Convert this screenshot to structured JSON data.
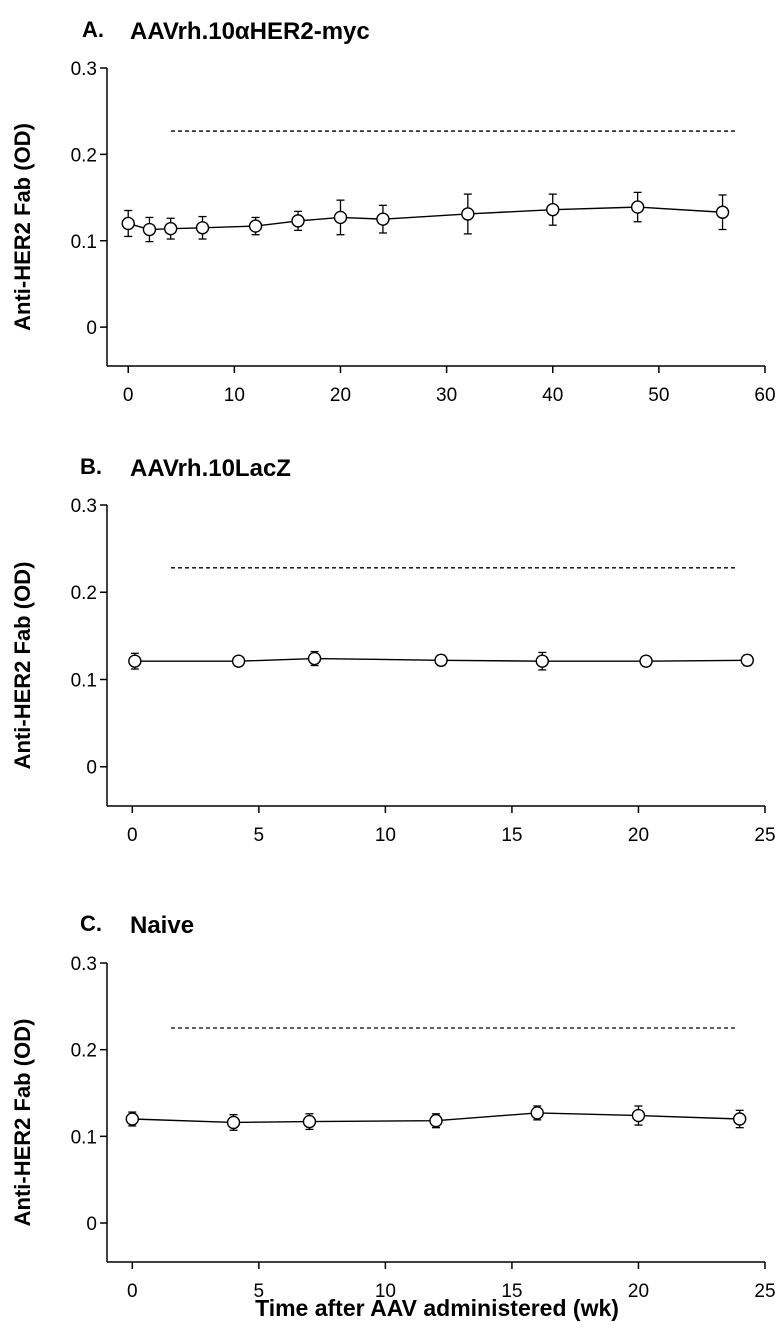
{
  "chart_data": [
    {
      "type": "line",
      "panel_letter": "A.",
      "title": "AAVrh.10αHER2-myc",
      "ylabel": "Anti-HER2 Fab (OD)",
      "xlabel": "",
      "xlim": [
        -2,
        60
      ],
      "ylim": [
        -0.045,
        0.3
      ],
      "x_ticks": [
        "0",
        "10",
        "20",
        "30",
        "40",
        "50",
        "60"
      ],
      "y_ticks": [
        "0",
        "0.1",
        "0.2",
        "0.3"
      ],
      "threshold": 0.227,
      "series": [
        {
          "x": [
            0,
            2,
            4,
            7,
            12,
            16,
            20,
            24,
            32,
            40,
            48,
            56
          ],
          "y": [
            0.12,
            0.113,
            0.114,
            0.115,
            0.117,
            0.123,
            0.127,
            0.125,
            0.131,
            0.136,
            0.139,
            0.133
          ],
          "err": [
            0.015,
            0.014,
            0.012,
            0.013,
            0.01,
            0.011,
            0.02,
            0.016,
            0.023,
            0.018,
            0.017,
            0.02
          ]
        }
      ]
    },
    {
      "type": "line",
      "panel_letter": "B.",
      "title": "AAVrh.10LacZ",
      "ylabel": "Anti-HER2 Fab (OD)",
      "xlabel": "",
      "xlim": [
        -1,
        25
      ],
      "ylim": [
        -0.045,
        0.3
      ],
      "x_ticks": [
        "0",
        "5",
        "10",
        "15",
        "20",
        "25"
      ],
      "y_ticks": [
        "0",
        "0.1",
        "0.2",
        "0.3"
      ],
      "threshold": 0.228,
      "series": [
        {
          "x": [
            0.1,
            4.2,
            7.2,
            12.2,
            16.2,
            20.3,
            24.3
          ],
          "y": [
            0.121,
            0.121,
            0.124,
            0.122,
            0.121,
            0.121,
            0.122
          ],
          "err": [
            0.009,
            0.005,
            0.008,
            0.006,
            0.01,
            0.005,
            0.006
          ]
        }
      ]
    },
    {
      "type": "line",
      "panel_letter": "C.",
      "title": "Naive",
      "ylabel": "Anti-HER2 Fab (OD)",
      "xlabel": "Time after AAV administered (wk)",
      "xlim": [
        -1,
        25
      ],
      "ylim": [
        -0.045,
        0.3
      ],
      "x_ticks": [
        "0",
        "5",
        "10",
        "15",
        "20",
        "25"
      ],
      "y_ticks": [
        "0",
        "0.1",
        "0.2",
        "0.3"
      ],
      "threshold": 0.225,
      "series": [
        {
          "x": [
            0,
            4,
            7,
            12,
            16,
            20,
            24
          ],
          "y": [
            0.12,
            0.116,
            0.117,
            0.118,
            0.127,
            0.124,
            0.12
          ],
          "err": [
            0.008,
            0.009,
            0.009,
            0.008,
            0.008,
            0.011,
            0.01
          ]
        }
      ]
    }
  ]
}
